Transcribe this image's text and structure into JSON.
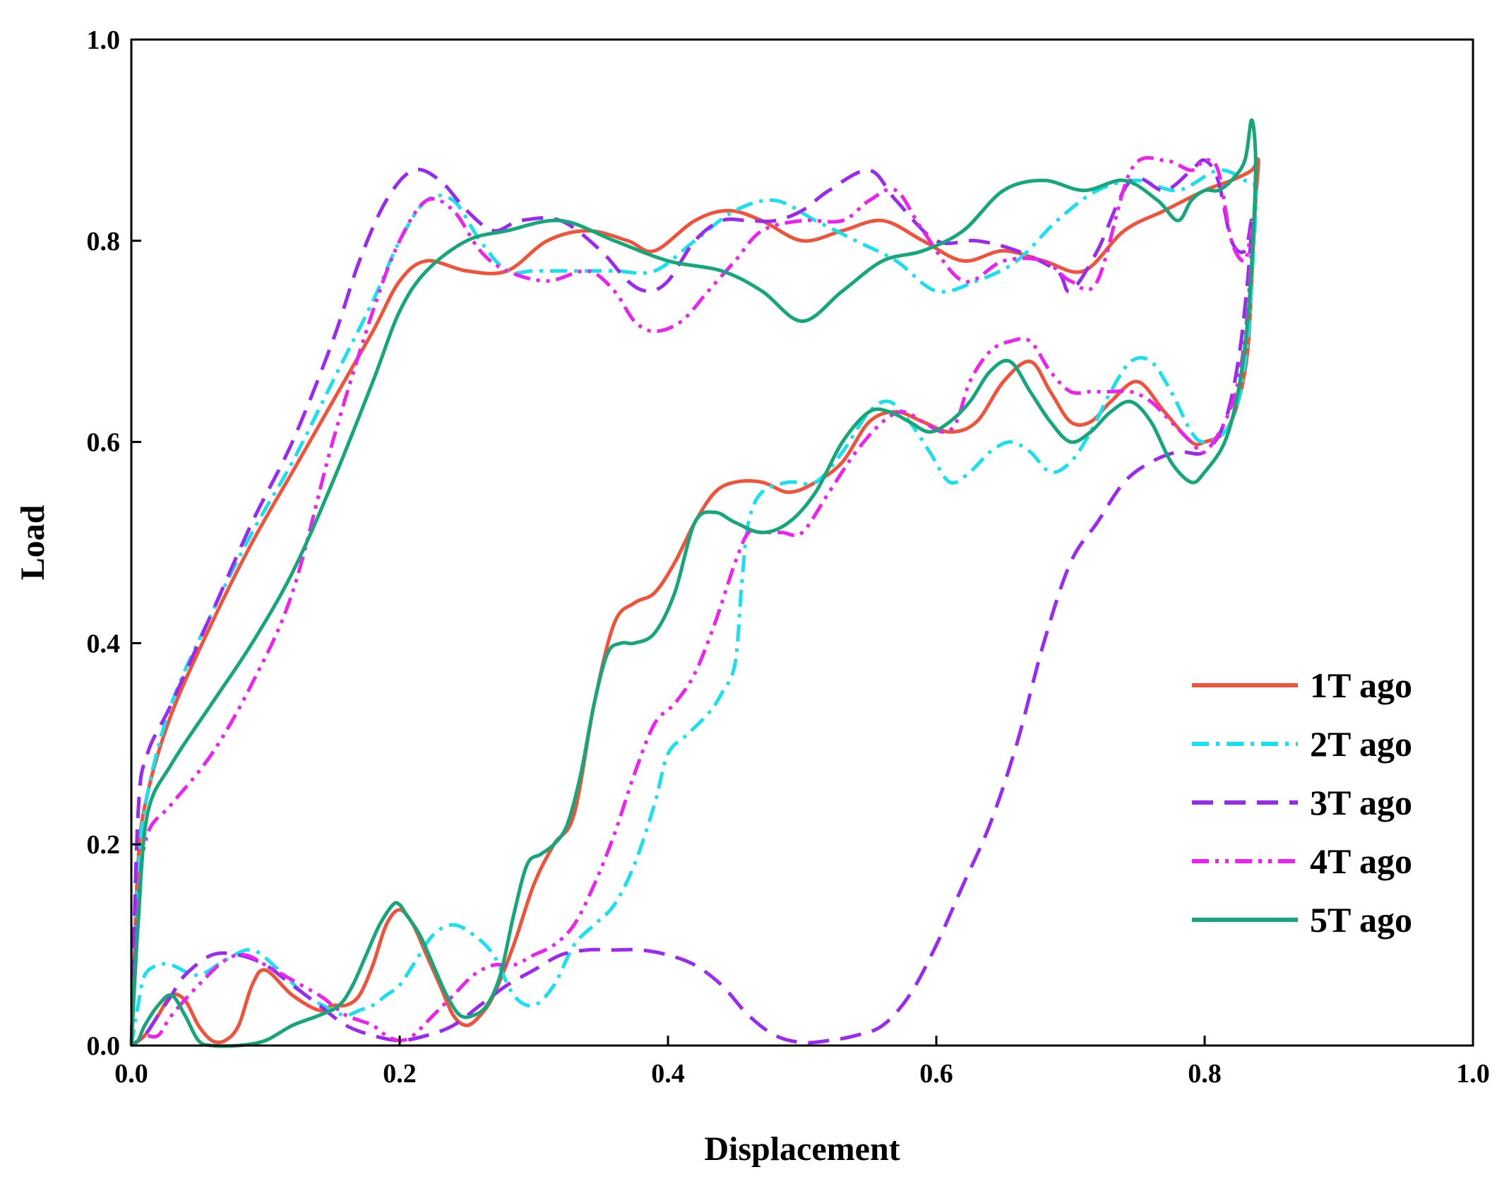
{
  "chart_data": {
    "type": "line",
    "xlabel": "Displacement",
    "ylabel": "Load",
    "xlim": [
      0.0,
      1.0
    ],
    "ylim": [
      0.0,
      1.0
    ],
    "xticks": [
      "0.0",
      "0.2",
      "0.4",
      "0.6",
      "0.8",
      "1.0"
    ],
    "yticks": [
      "0.0",
      "0.2",
      "0.4",
      "0.6",
      "0.8",
      "1.0"
    ],
    "grid": false,
    "legend_position": "bottom-right",
    "series": [
      {
        "name": "1T ago",
        "color": "#f0523a",
        "dash": "solid",
        "x": [
          0.0,
          0.005,
          0.012,
          0.03,
          0.06,
          0.09,
          0.12,
          0.15,
          0.18,
          0.2,
          0.22,
          0.25,
          0.28,
          0.31,
          0.34,
          0.37,
          0.39,
          0.42,
          0.445,
          0.47,
          0.5,
          0.53,
          0.56,
          0.59,
          0.62,
          0.65,
          0.68,
          0.71,
          0.74,
          0.77,
          0.8,
          0.82,
          0.835,
          0.84,
          0.838,
          0.835,
          0.832,
          0.825,
          0.815,
          0.8,
          0.79,
          0.77,
          0.75,
          0.73,
          0.715,
          0.7,
          0.685,
          0.67,
          0.65,
          0.63,
          0.61,
          0.59,
          0.57,
          0.55,
          0.53,
          0.51,
          0.49,
          0.47,
          0.45,
          0.435,
          0.42,
          0.405,
          0.39,
          0.375,
          0.36,
          0.345,
          0.33,
          0.315,
          0.3,
          0.285,
          0.27,
          0.26,
          0.25,
          0.24,
          0.23,
          0.22,
          0.21,
          0.2,
          0.19,
          0.18,
          0.17,
          0.16,
          0.15,
          0.14,
          0.12,
          0.1,
          0.09,
          0.08,
          0.07,
          0.06,
          0.05,
          0.04,
          0.03,
          0.02,
          0.01,
          0.0
        ],
        "y": [
          0.0,
          0.18,
          0.25,
          0.33,
          0.42,
          0.5,
          0.57,
          0.64,
          0.71,
          0.76,
          0.78,
          0.77,
          0.77,
          0.8,
          0.81,
          0.8,
          0.79,
          0.82,
          0.83,
          0.82,
          0.8,
          0.81,
          0.82,
          0.8,
          0.78,
          0.79,
          0.78,
          0.77,
          0.81,
          0.83,
          0.85,
          0.86,
          0.87,
          0.88,
          0.84,
          0.76,
          0.69,
          0.64,
          0.61,
          0.6,
          0.6,
          0.63,
          0.66,
          0.64,
          0.62,
          0.62,
          0.65,
          0.68,
          0.66,
          0.62,
          0.61,
          0.62,
          0.63,
          0.62,
          0.58,
          0.56,
          0.55,
          0.56,
          0.56,
          0.55,
          0.52,
          0.48,
          0.45,
          0.44,
          0.42,
          0.34,
          0.23,
          0.2,
          0.16,
          0.1,
          0.05,
          0.03,
          0.02,
          0.03,
          0.06,
          0.09,
          0.12,
          0.135,
          0.12,
          0.08,
          0.05,
          0.04,
          0.04,
          0.035,
          0.05,
          0.075,
          0.06,
          0.02,
          0.005,
          0.005,
          0.02,
          0.045,
          0.05,
          0.03,
          0.01,
          0.0
        ]
      },
      {
        "name": "2T ago",
        "color": "#18e0ee",
        "dash": "dash-dot",
        "x": [
          0.0,
          0.005,
          0.012,
          0.03,
          0.06,
          0.09,
          0.12,
          0.15,
          0.18,
          0.2,
          0.22,
          0.24,
          0.26,
          0.28,
          0.3,
          0.33,
          0.36,
          0.39,
          0.42,
          0.45,
          0.48,
          0.51,
          0.54,
          0.57,
          0.6,
          0.63,
          0.66,
          0.69,
          0.72,
          0.75,
          0.78,
          0.81,
          0.83,
          0.838,
          0.836,
          0.832,
          0.825,
          0.815,
          0.8,
          0.79,
          0.775,
          0.76,
          0.745,
          0.73,
          0.715,
          0.7,
          0.685,
          0.67,
          0.655,
          0.64,
          0.625,
          0.61,
          0.595,
          0.58,
          0.565,
          0.55,
          0.53,
          0.51,
          0.49,
          0.47,
          0.46,
          0.455,
          0.45,
          0.44,
          0.43,
          0.415,
          0.4,
          0.39,
          0.375,
          0.36,
          0.345,
          0.33,
          0.315,
          0.3,
          0.285,
          0.27,
          0.255,
          0.24,
          0.225,
          0.21,
          0.2,
          0.19,
          0.18,
          0.17,
          0.16,
          0.15,
          0.13,
          0.11,
          0.09,
          0.07,
          0.05,
          0.03,
          0.02,
          0.01,
          0.005,
          0.0
        ],
        "y": [
          0.0,
          0.17,
          0.25,
          0.34,
          0.43,
          0.51,
          0.58,
          0.66,
          0.74,
          0.8,
          0.84,
          0.84,
          0.8,
          0.77,
          0.77,
          0.77,
          0.77,
          0.77,
          0.8,
          0.83,
          0.84,
          0.82,
          0.8,
          0.78,
          0.75,
          0.76,
          0.78,
          0.82,
          0.85,
          0.86,
          0.85,
          0.87,
          0.86,
          0.85,
          0.78,
          0.7,
          0.64,
          0.61,
          0.6,
          0.61,
          0.65,
          0.68,
          0.68,
          0.65,
          0.61,
          0.58,
          0.57,
          0.59,
          0.6,
          0.59,
          0.57,
          0.56,
          0.59,
          0.62,
          0.64,
          0.63,
          0.59,
          0.56,
          0.56,
          0.55,
          0.52,
          0.46,
          0.38,
          0.35,
          0.33,
          0.31,
          0.29,
          0.24,
          0.18,
          0.14,
          0.12,
          0.1,
          0.06,
          0.04,
          0.05,
          0.09,
          0.11,
          0.12,
          0.11,
          0.08,
          0.06,
          0.05,
          0.04,
          0.035,
          0.03,
          0.035,
          0.05,
          0.075,
          0.095,
          0.085,
          0.07,
          0.08,
          0.08,
          0.07,
          0.04,
          0.0
        ]
      },
      {
        "name": "3T ago",
        "color": "#9a29f2",
        "dash": "dashed",
        "x": [
          0.0,
          0.005,
          0.012,
          0.03,
          0.06,
          0.09,
          0.12,
          0.15,
          0.17,
          0.19,
          0.21,
          0.23,
          0.25,
          0.27,
          0.29,
          0.32,
          0.35,
          0.37,
          0.385,
          0.4,
          0.42,
          0.44,
          0.46,
          0.48,
          0.5,
          0.52,
          0.55,
          0.57,
          0.6,
          0.63,
          0.66,
          0.69,
          0.7,
          0.72,
          0.745,
          0.77,
          0.79,
          0.8,
          0.81,
          0.82,
          0.83,
          0.835,
          0.832,
          0.825,
          0.815,
          0.8,
          0.78,
          0.76,
          0.74,
          0.72,
          0.7,
          0.68,
          0.66,
          0.64,
          0.62,
          0.6,
          0.58,
          0.56,
          0.54,
          0.52,
          0.5,
          0.48,
          0.46,
          0.44,
          0.42,
          0.4,
          0.38,
          0.36,
          0.34,
          0.32,
          0.3,
          0.28,
          0.26,
          0.24,
          0.22,
          0.2,
          0.18,
          0.16,
          0.14,
          0.12,
          0.1,
          0.08,
          0.06,
          0.04,
          0.03,
          0.02,
          0.01,
          0.005,
          0.0
        ],
        "y": [
          0.0,
          0.23,
          0.29,
          0.34,
          0.43,
          0.52,
          0.6,
          0.7,
          0.78,
          0.84,
          0.87,
          0.86,
          0.83,
          0.81,
          0.82,
          0.82,
          0.79,
          0.76,
          0.75,
          0.76,
          0.8,
          0.82,
          0.82,
          0.82,
          0.83,
          0.85,
          0.87,
          0.84,
          0.8,
          0.8,
          0.79,
          0.77,
          0.75,
          0.79,
          0.86,
          0.85,
          0.87,
          0.88,
          0.86,
          0.8,
          0.79,
          0.82,
          0.76,
          0.68,
          0.62,
          0.59,
          0.59,
          0.58,
          0.56,
          0.52,
          0.48,
          0.4,
          0.3,
          0.22,
          0.16,
          0.1,
          0.05,
          0.02,
          0.01,
          0.005,
          0.003,
          0.01,
          0.03,
          0.06,
          0.08,
          0.09,
          0.095,
          0.095,
          0.095,
          0.09,
          0.075,
          0.06,
          0.04,
          0.02,
          0.01,
          0.005,
          0.01,
          0.02,
          0.04,
          0.06,
          0.08,
          0.09,
          0.09,
          0.07,
          0.05,
          0.03,
          0.01,
          0.005,
          0.0
        ]
      },
      {
        "name": "4T ago",
        "color": "#ee22ee",
        "dash": "dash-dot-dot",
        "x": [
          0.0,
          0.005,
          0.012,
          0.03,
          0.06,
          0.09,
          0.12,
          0.15,
          0.18,
          0.2,
          0.22,
          0.24,
          0.26,
          0.28,
          0.31,
          0.34,
          0.36,
          0.375,
          0.39,
          0.41,
          0.43,
          0.45,
          0.47,
          0.5,
          0.53,
          0.55,
          0.57,
          0.59,
          0.62,
          0.65,
          0.68,
          0.7,
          0.72,
          0.745,
          0.77,
          0.79,
          0.8,
          0.81,
          0.82,
          0.83,
          0.835,
          0.832,
          0.825,
          0.815,
          0.8,
          0.79,
          0.775,
          0.76,
          0.745,
          0.73,
          0.715,
          0.7,
          0.685,
          0.67,
          0.655,
          0.64,
          0.625,
          0.615,
          0.605,
          0.59,
          0.575,
          0.56,
          0.54,
          0.52,
          0.5,
          0.485,
          0.47,
          0.46,
          0.45,
          0.435,
          0.42,
          0.405,
          0.39,
          0.375,
          0.36,
          0.345,
          0.33,
          0.315,
          0.3,
          0.285,
          0.27,
          0.255,
          0.24,
          0.225,
          0.21,
          0.2,
          0.19,
          0.18,
          0.17,
          0.16,
          0.15,
          0.14,
          0.12,
          0.1,
          0.085,
          0.07,
          0.05,
          0.03,
          0.02,
          0.01,
          0.005,
          0.0
        ],
        "y": [
          0.0,
          0.14,
          0.21,
          0.24,
          0.29,
          0.36,
          0.45,
          0.6,
          0.73,
          0.8,
          0.84,
          0.83,
          0.79,
          0.77,
          0.76,
          0.77,
          0.75,
          0.72,
          0.71,
          0.72,
          0.75,
          0.78,
          0.81,
          0.82,
          0.82,
          0.84,
          0.85,
          0.81,
          0.76,
          0.78,
          0.78,
          0.76,
          0.76,
          0.87,
          0.88,
          0.87,
          0.88,
          0.87,
          0.8,
          0.78,
          0.81,
          0.73,
          0.66,
          0.62,
          0.59,
          0.6,
          0.62,
          0.64,
          0.65,
          0.65,
          0.65,
          0.65,
          0.67,
          0.7,
          0.7,
          0.69,
          0.66,
          0.62,
          0.61,
          0.62,
          0.63,
          0.62,
          0.59,
          0.55,
          0.51,
          0.51,
          0.51,
          0.51,
          0.48,
          0.42,
          0.37,
          0.34,
          0.32,
          0.27,
          0.21,
          0.16,
          0.12,
          0.1,
          0.09,
          0.08,
          0.08,
          0.07,
          0.05,
          0.03,
          0.01,
          0.005,
          0.01,
          0.02,
          0.025,
          0.03,
          0.04,
          0.05,
          0.065,
          0.08,
          0.09,
          0.085,
          0.06,
          0.03,
          0.01,
          0.01,
          0.005,
          0.0
        ]
      },
      {
        "name": "5T ago",
        "color": "#15a67a",
        "dash": "solid",
        "x": [
          0.0,
          0.005,
          0.012,
          0.03,
          0.06,
          0.09,
          0.12,
          0.15,
          0.18,
          0.2,
          0.22,
          0.25,
          0.28,
          0.32,
          0.36,
          0.4,
          0.44,
          0.47,
          0.5,
          0.53,
          0.56,
          0.59,
          0.62,
          0.65,
          0.68,
          0.71,
          0.74,
          0.765,
          0.78,
          0.79,
          0.8,
          0.81,
          0.82,
          0.83,
          0.835,
          0.838,
          0.836,
          0.832,
          0.825,
          0.815,
          0.8,
          0.79,
          0.775,
          0.76,
          0.745,
          0.73,
          0.715,
          0.7,
          0.685,
          0.67,
          0.655,
          0.64,
          0.625,
          0.61,
          0.595,
          0.58,
          0.565,
          0.55,
          0.53,
          0.51,
          0.49,
          0.47,
          0.45,
          0.435,
          0.42,
          0.405,
          0.39,
          0.375,
          0.365,
          0.355,
          0.345,
          0.335,
          0.325,
          0.315,
          0.305,
          0.295,
          0.285,
          0.275,
          0.265,
          0.255,
          0.245,
          0.235,
          0.225,
          0.215,
          0.205,
          0.2,
          0.195,
          0.185,
          0.175,
          0.165,
          0.155,
          0.14,
          0.12,
          0.1,
          0.08,
          0.06,
          0.05,
          0.04,
          0.03,
          0.02,
          0.01,
          0.005,
          0.0
        ],
        "y": [
          0.0,
          0.12,
          0.23,
          0.28,
          0.34,
          0.4,
          0.47,
          0.56,
          0.66,
          0.73,
          0.77,
          0.8,
          0.81,
          0.82,
          0.8,
          0.78,
          0.77,
          0.75,
          0.72,
          0.75,
          0.78,
          0.79,
          0.81,
          0.85,
          0.86,
          0.85,
          0.86,
          0.84,
          0.82,
          0.84,
          0.85,
          0.85,
          0.86,
          0.88,
          0.92,
          0.88,
          0.8,
          0.72,
          0.65,
          0.6,
          0.57,
          0.56,
          0.58,
          0.62,
          0.64,
          0.63,
          0.61,
          0.6,
          0.62,
          0.65,
          0.68,
          0.67,
          0.64,
          0.62,
          0.61,
          0.62,
          0.63,
          0.63,
          0.6,
          0.55,
          0.52,
          0.51,
          0.52,
          0.53,
          0.52,
          0.45,
          0.41,
          0.4,
          0.4,
          0.39,
          0.34,
          0.27,
          0.22,
          0.2,
          0.19,
          0.18,
          0.13,
          0.07,
          0.04,
          0.03,
          0.03,
          0.05,
          0.08,
          0.11,
          0.13,
          0.14,
          0.14,
          0.12,
          0.09,
          0.06,
          0.04,
          0.03,
          0.02,
          0.005,
          0.0,
          0.0,
          0.005,
          0.03,
          0.05,
          0.04,
          0.02,
          0.005,
          0.0
        ]
      }
    ]
  }
}
